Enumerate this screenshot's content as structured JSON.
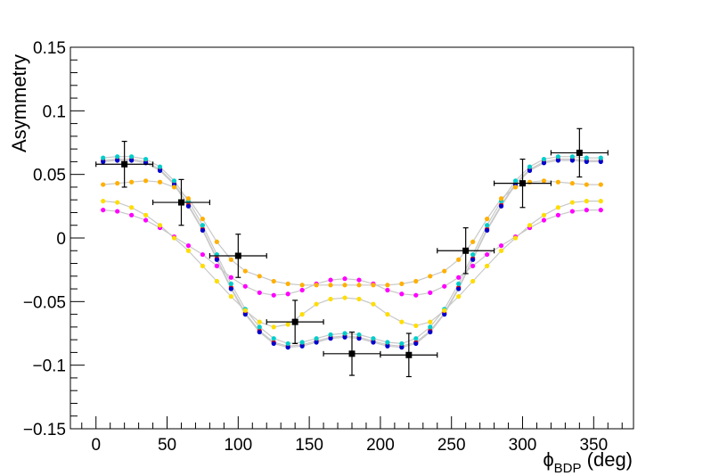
{
  "chart_data": {
    "type": "scatter",
    "title": "",
    "ylabel": "Asymmetry",
    "xlabel": {
      "symbol": "ϕ",
      "sub": "BDP",
      "unit": "(deg)"
    },
    "xlim": [
      -18,
      378
    ],
    "ylim": [
      -0.15,
      0.15
    ],
    "xticks": [
      0,
      50,
      100,
      150,
      200,
      250,
      300,
      350
    ],
    "xtick_labels": [
      "0",
      "50",
      "100",
      "150",
      "200",
      "250",
      "300",
      "350"
    ],
    "yticks": [
      -0.15,
      -0.1,
      -0.05,
      0,
      0.05,
      0.1,
      0.15
    ],
    "ytick_labels": [
      "−0.15",
      "−0.1",
      "−0.05",
      "0",
      "0.05",
      "0.1",
      "0.15"
    ],
    "x_minor_step": 10,
    "y_minor_step": 0.01,
    "grid": false,
    "legend": "none",
    "curve_x": [
      5,
      15,
      25,
      35,
      45,
      55,
      65,
      75,
      85,
      95,
      105,
      115,
      125,
      135,
      145,
      155,
      165,
      175,
      185,
      195,
      205,
      215,
      225,
      235,
      245,
      255,
      265,
      275,
      285,
      295,
      305,
      315,
      325,
      335,
      345,
      355
    ],
    "series": [
      {
        "color": "#ff0000",
        "values": [
          0.061,
          0.062,
          0.062,
          0.06,
          0.054,
          0.043,
          0.026,
          0.007,
          -0.016,
          -0.039,
          -0.059,
          -0.073,
          -0.082,
          -0.085,
          -0.084,
          -0.081,
          -0.078,
          -0.077,
          -0.078,
          -0.081,
          -0.084,
          -0.085,
          -0.082,
          -0.073,
          -0.059,
          -0.039,
          -0.016,
          0.007,
          0.026,
          0.043,
          0.054,
          0.06,
          0.062,
          0.062,
          0.061,
          0.061
        ]
      },
      {
        "color": "#0000cc",
        "values": [
          0.06,
          0.061,
          0.061,
          0.059,
          0.053,
          0.042,
          0.025,
          0.006,
          -0.017,
          -0.04,
          -0.06,
          -0.074,
          -0.083,
          -0.086,
          -0.085,
          -0.082,
          -0.079,
          -0.078,
          -0.079,
          -0.082,
          -0.085,
          -0.086,
          -0.083,
          -0.074,
          -0.06,
          -0.04,
          -0.017,
          0.006,
          0.025,
          0.042,
          0.053,
          0.059,
          0.061,
          0.061,
          0.06,
          0.06
        ]
      },
      {
        "color": "#00cccc",
        "values": [
          0.063,
          0.064,
          0.064,
          0.062,
          0.056,
          0.045,
          0.029,
          0.01,
          -0.013,
          -0.036,
          -0.056,
          -0.07,
          -0.079,
          -0.083,
          -0.082,
          -0.079,
          -0.076,
          -0.075,
          -0.076,
          -0.079,
          -0.082,
          -0.083,
          -0.079,
          -0.07,
          -0.056,
          -0.036,
          -0.013,
          0.01,
          0.029,
          0.045,
          0.056,
          0.062,
          0.064,
          0.064,
          0.063,
          0.063
        ]
      },
      {
        "color": "#ff00ff",
        "values": [
          0.022,
          0.021,
          0.018,
          0.014,
          0.008,
          0.001,
          -0.006,
          -0.013,
          -0.022,
          -0.031,
          -0.038,
          -0.043,
          -0.045,
          -0.044,
          -0.041,
          -0.036,
          -0.033,
          -0.032,
          -0.033,
          -0.036,
          -0.041,
          -0.044,
          -0.045,
          -0.043,
          -0.038,
          -0.031,
          -0.022,
          -0.013,
          -0.006,
          0.001,
          0.008,
          0.014,
          0.018,
          0.021,
          0.022,
          0.022
        ]
      },
      {
        "color": "#ffdd00",
        "values": [
          0.029,
          0.028,
          0.024,
          0.018,
          0.01,
          0.0,
          -0.01,
          -0.022,
          -0.034,
          -0.046,
          -0.057,
          -0.066,
          -0.07,
          -0.068,
          -0.06,
          -0.052,
          -0.048,
          -0.047,
          -0.048,
          -0.052,
          -0.06,
          -0.066,
          -0.069,
          -0.066,
          -0.057,
          -0.046,
          -0.034,
          -0.022,
          -0.01,
          0.0,
          0.01,
          0.018,
          0.024,
          0.028,
          0.029,
          0.029
        ]
      },
      {
        "color": "#ffb000",
        "values": [
          0.042,
          0.043,
          0.044,
          0.045,
          0.044,
          0.04,
          0.031,
          0.015,
          -0.003,
          -0.017,
          -0.026,
          -0.03,
          -0.034,
          -0.036,
          -0.037,
          -0.037,
          -0.037,
          -0.037,
          -0.037,
          -0.037,
          -0.037,
          -0.036,
          -0.034,
          -0.03,
          -0.026,
          -0.017,
          -0.003,
          0.015,
          0.031,
          0.04,
          0.044,
          0.045,
          0.044,
          0.043,
          0.042,
          0.042
        ]
      }
    ],
    "data_points": [
      {
        "x": 20,
        "xerr": 20,
        "y": 0.058,
        "yerr": 0.018
      },
      {
        "x": 60,
        "xerr": 20,
        "y": 0.028,
        "yerr": 0.018
      },
      {
        "x": 100,
        "xerr": 20,
        "y": -0.014,
        "yerr": 0.017
      },
      {
        "x": 140,
        "xerr": 20,
        "y": -0.066,
        "yerr": 0.017
      },
      {
        "x": 180,
        "xerr": 20,
        "y": -0.091,
        "yerr": 0.017
      },
      {
        "x": 220,
        "xerr": 20,
        "y": -0.092,
        "yerr": 0.017
      },
      {
        "x": 260,
        "xerr": 20,
        "y": -0.01,
        "yerr": 0.018
      },
      {
        "x": 300,
        "xerr": 20,
        "y": 0.043,
        "yerr": 0.019
      },
      {
        "x": 340,
        "xerr": 20,
        "y": 0.067,
        "yerr": 0.019
      }
    ],
    "colors": {
      "data": "#000000",
      "curve_line": "#c8c8c8",
      "axis": "#000000",
      "background": "#ffffff"
    }
  }
}
